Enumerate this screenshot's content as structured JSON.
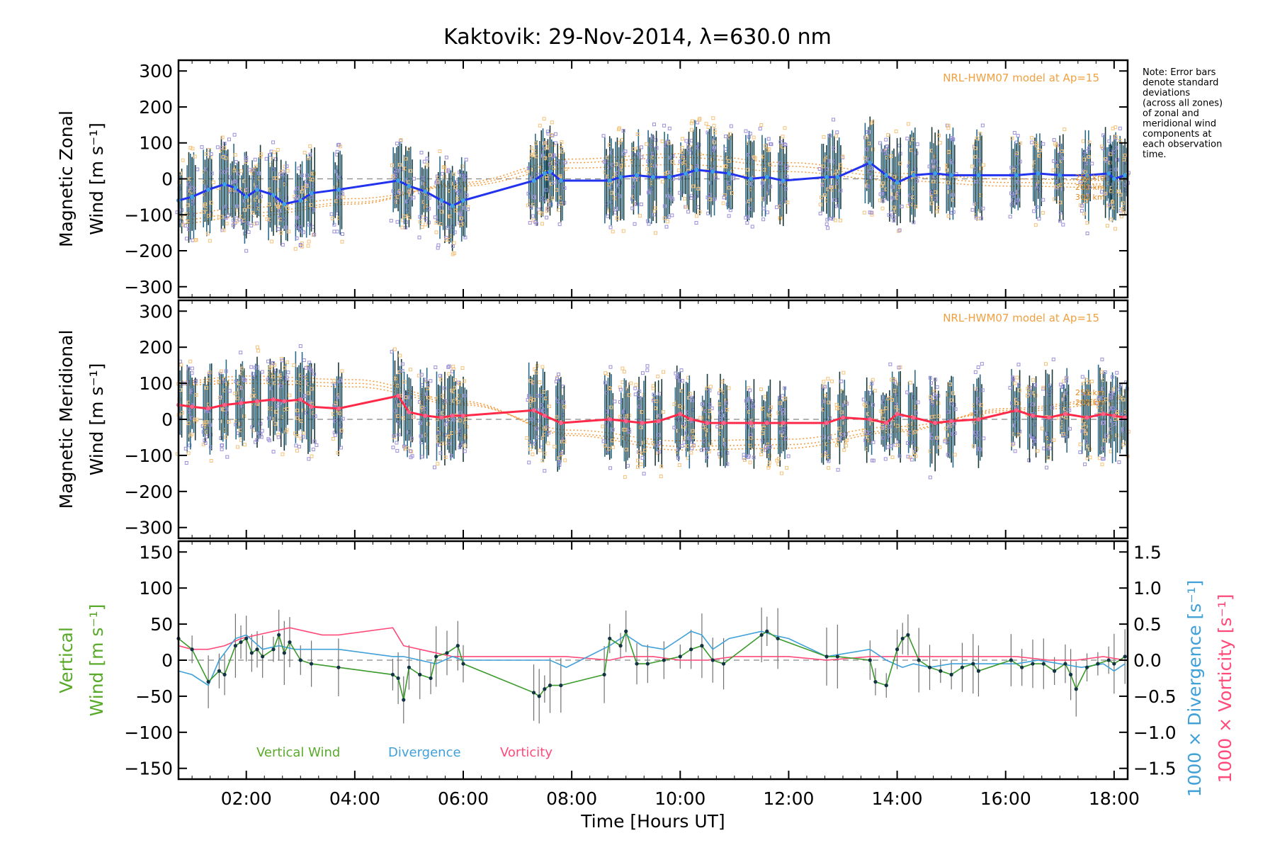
{
  "title": "Kaktovik: 29-Nov-2014, λ=630.0 nm",
  "note_lines": [
    "Note: Error bars",
    "denote standard",
    "deviations",
    "(across all zones)",
    "of zonal and",
    "meridional wind",
    "components at",
    "each observation",
    "time."
  ],
  "colors": {
    "zonal": "#2233ee",
    "zonal_light": "#3ea0e0",
    "meridional": "#ff2a4a",
    "meridional_light": "#ff6088",
    "model": "#f59a3c",
    "zone_violet": "#9a8fd8",
    "zone_orange": "#f5c27a",
    "errbar_dark": "#1a3a3a",
    "errbar_grey": "#707070",
    "vertical": "#3a9a2a",
    "vertical_label": "#5aaa2a",
    "divergence": "#40a0d8",
    "vorticity": "#ff4a7a"
  },
  "chart_data": [
    {
      "type": "line",
      "panel": "zonal",
      "ylabel_line1": "Magnetic Zonal",
      "ylabel_line2": "Wind [m s⁻¹]",
      "ylim": [
        -330,
        330
      ],
      "yticks": [
        300,
        200,
        100,
        0,
        -100,
        -200,
        -300
      ],
      "yticklabels": [
        "300",
        "200",
        "100",
        "0",
        "−100",
        "−200",
        "−300"
      ],
      "model_label": "NRL-HWM07 model at Ap=15",
      "model_alt_labels": [
        "250 km",
        "200 km",
        "300 km"
      ],
      "x": [
        0.75,
        1.0,
        1.3,
        1.6,
        1.8,
        2.0,
        2.2,
        2.5,
        2.7,
        3.0,
        3.2,
        3.7,
        4.8,
        5.0,
        5.3,
        5.6,
        5.8,
        6.0,
        7.3,
        7.5,
        7.6,
        7.8,
        8.7,
        8.9,
        9.2,
        9.5,
        9.8,
        10.1,
        10.3,
        10.6,
        10.9,
        11.3,
        11.6,
        11.9,
        12.7,
        12.9,
        13.5,
        13.8,
        14.0,
        14.3,
        14.7,
        15.0,
        15.5,
        16.2,
        16.6,
        17.0,
        17.5,
        17.9,
        18.0,
        18.2
      ],
      "y": [
        -60,
        -50,
        -30,
        -15,
        -25,
        -50,
        -30,
        -45,
        -70,
        -60,
        -40,
        -30,
        -5,
        -20,
        -35,
        -60,
        -75,
        -60,
        -5,
        15,
        20,
        -5,
        -5,
        5,
        10,
        5,
        5,
        15,
        25,
        20,
        15,
        0,
        5,
        -5,
        5,
        5,
        45,
        10,
        -10,
        10,
        15,
        10,
        10,
        10,
        15,
        10,
        10,
        15,
        0,
        10
      ],
      "model_curves": [
        {
          "name": "200 km",
          "x": [
            0.7,
            2,
            4,
            6,
            8,
            10,
            12,
            14,
            16,
            18.2
          ],
          "y": [
            -100,
            -80,
            -55,
            -20,
            30,
            40,
            20,
            -5,
            -20,
            -25
          ]
        },
        {
          "name": "250 km",
          "x": [
            0.7,
            2,
            4,
            6,
            8,
            10,
            12,
            14,
            16,
            18.2
          ],
          "y": [
            -115,
            -95,
            -65,
            -15,
            45,
            60,
            35,
            5,
            -10,
            -15
          ]
        },
        {
          "name": "300 km",
          "x": [
            0.7,
            2,
            4,
            6,
            8,
            10,
            12,
            14,
            16,
            18.2
          ],
          "y": [
            -125,
            -105,
            -70,
            -10,
            55,
            70,
            45,
            15,
            0,
            -5
          ]
        }
      ]
    },
    {
      "type": "line",
      "panel": "meridional",
      "ylabel_line1": "Magnetic Meridional",
      "ylabel_line2": "Wind [m s⁻¹]",
      "ylim": [
        -330,
        330
      ],
      "yticks": [
        300,
        200,
        100,
        0,
        -100,
        -200,
        -300
      ],
      "yticklabels": [
        "300",
        "200",
        "100",
        "0",
        "−100",
        "−200",
        "−300"
      ],
      "model_label": "NRL-HWM07 model at Ap=15",
      "model_alt_labels": [
        "250 km",
        "200 km"
      ],
      "x": [
        0.75,
        1.0,
        1.3,
        1.6,
        1.9,
        2.2,
        2.5,
        2.7,
        3.0,
        3.2,
        3.7,
        4.8,
        5.0,
        5.3,
        5.6,
        5.8,
        6.0,
        7.3,
        7.5,
        7.8,
        8.7,
        9.0,
        9.3,
        9.6,
        10.0,
        10.2,
        10.5,
        10.8,
        11.3,
        11.6,
        11.9,
        12.7,
        13.0,
        13.5,
        13.8,
        14.0,
        14.3,
        14.7,
        15.0,
        15.5,
        16.2,
        16.5,
        16.8,
        17.1,
        17.5,
        17.8,
        18.0,
        18.2
      ],
      "y": [
        40,
        35,
        30,
        40,
        45,
        50,
        55,
        50,
        55,
        35,
        30,
        65,
        20,
        10,
        5,
        10,
        10,
        25,
        10,
        -10,
        0,
        -5,
        -10,
        -5,
        15,
        0,
        -10,
        -10,
        -10,
        -10,
        -10,
        -10,
        5,
        0,
        -10,
        15,
        5,
        -10,
        -5,
        0,
        25,
        10,
        5,
        15,
        5,
        15,
        10,
        5
      ],
      "model_curves": [
        {
          "name": "200 km",
          "x": [
            0.7,
            2,
            4,
            6,
            8,
            10,
            12,
            14,
            16,
            18.2
          ],
          "y": [
            95,
            100,
            90,
            40,
            -30,
            -60,
            -55,
            -20,
            20,
            45
          ]
        },
        {
          "name": "250 km",
          "x": [
            0.7,
            2,
            4,
            6,
            8,
            10,
            12,
            14,
            16,
            18.2
          ],
          "y": [
            100,
            110,
            100,
            45,
            -40,
            -75,
            -70,
            -30,
            25,
            55
          ]
        },
        {
          "name": "300 km",
          "x": [
            0.7,
            2,
            4,
            6,
            8,
            10,
            12,
            14,
            16,
            18.2
          ],
          "y": [
            105,
            120,
            110,
            50,
            -45,
            -85,
            -80,
            -35,
            30,
            60
          ]
        }
      ]
    },
    {
      "type": "line",
      "panel": "vertical",
      "ylabel_left_line1": "Vertical",
      "ylabel_left_line2": "Wind [m s⁻¹]",
      "ylabel_right_div": "1000 × Divergence [s⁻¹]",
      "ylabel_right_vort": "1000 × Vorticity [s⁻¹]",
      "ylim": [
        -165,
        165
      ],
      "yticks": [
        150,
        100,
        50,
        0,
        -50,
        -100,
        -150
      ],
      "yticklabels": [
        "150",
        "100",
        "50",
        "0",
        "−50",
        "−100",
        "−150"
      ],
      "y2lim": [
        -1.65,
        1.65
      ],
      "y2ticks": [
        1.5,
        1.0,
        0.5,
        0.0,
        -0.5,
        -1.0,
        -1.5
      ],
      "y2ticklabels": [
        "1.5",
        "1.0",
        "0.5",
        "0.0",
        "−0.5",
        "−1.0",
        "−1.5"
      ],
      "legend": [
        "Vertical Wind",
        "Divergence",
        "Vorticity"
      ],
      "xlim": [
        0.75,
        18.25
      ],
      "xticks": [
        2,
        4,
        6,
        8,
        10,
        12,
        14,
        16,
        18
      ],
      "xticklabels": [
        "02:00",
        "04:00",
        "06:00",
        "08:00",
        "10:00",
        "12:00",
        "14:00",
        "16:00",
        "18:00"
      ],
      "xlabel": "Time [Hours UT]",
      "series": [
        {
          "name": "Vertical Wind",
          "x": [
            0.75,
            1.0,
            1.3,
            1.5,
            1.6,
            1.8,
            1.9,
            2.0,
            2.1,
            2.2,
            2.3,
            2.5,
            2.6,
            2.7,
            2.8,
            3.0,
            3.2,
            3.7,
            4.7,
            4.8,
            4.9,
            5.0,
            5.2,
            5.4,
            5.5,
            5.7,
            5.9,
            6.0,
            7.3,
            7.4,
            7.5,
            7.6,
            7.8,
            8.6,
            8.7,
            8.9,
            9.0,
            9.2,
            9.4,
            9.7,
            10.0,
            10.2,
            10.4,
            10.6,
            10.8,
            11.5,
            11.6,
            11.8,
            12.7,
            12.9,
            13.5,
            13.6,
            13.8,
            14.0,
            14.1,
            14.2,
            14.4,
            14.6,
            14.8,
            15.0,
            15.2,
            15.4,
            15.5,
            16.1,
            16.3,
            16.5,
            16.7,
            16.9,
            17.1,
            17.2,
            17.3,
            17.5,
            17.7,
            17.9,
            18.0,
            18.2
          ],
          "y": [
            30,
            15,
            -30,
            -15,
            -20,
            20,
            25,
            30,
            10,
            15,
            5,
            15,
            35,
            10,
            25,
            0,
            -5,
            -10,
            -20,
            -25,
            -55,
            -10,
            -20,
            -25,
            5,
            10,
            20,
            -5,
            -45,
            -50,
            -40,
            -35,
            -35,
            -20,
            30,
            20,
            40,
            -5,
            -5,
            0,
            5,
            15,
            20,
            0,
            -5,
            35,
            40,
            30,
            5,
            5,
            0,
            -30,
            -35,
            15,
            30,
            35,
            0,
            -10,
            -15,
            -20,
            -10,
            -5,
            -15,
            0,
            -10,
            -5,
            -5,
            -15,
            -5,
            -20,
            -40,
            -10,
            -5,
            0,
            -5,
            5
          ]
        },
        {
          "name": "Divergence",
          "x": [
            0.75,
            1.0,
            1.3,
            1.5,
            1.8,
            2.0,
            2.3,
            2.6,
            2.9,
            3.2,
            3.7,
            4.7,
            4.9,
            5.2,
            5.5,
            5.8,
            6.0,
            7.3,
            7.6,
            7.9,
            8.7,
            9.0,
            9.3,
            9.7,
            10.0,
            10.2,
            10.4,
            10.6,
            10.9,
            11.5,
            11.7,
            12.0,
            12.7,
            13.5,
            13.8,
            14.1,
            14.3,
            14.6,
            15.0,
            15.5,
            16.2,
            16.6,
            17.0,
            17.4,
            17.8,
            18.0,
            18.2
          ],
          "y": [
            -0.15,
            -0.2,
            -0.35,
            0.0,
            0.3,
            0.35,
            0.15,
            0.2,
            0.15,
            0.15,
            0.15,
            0.05,
            0.05,
            0.0,
            -0.05,
            0.05,
            0.0,
            0.0,
            0.0,
            -0.1,
            0.2,
            0.35,
            0.2,
            0.15,
            0.3,
            0.4,
            0.35,
            0.15,
            0.3,
            0.4,
            0.35,
            0.3,
            0.05,
            0.15,
            0.0,
            -0.1,
            -0.05,
            -0.1,
            -0.05,
            -0.05,
            -0.05,
            0.0,
            -0.05,
            -0.1,
            -0.05,
            -0.15,
            -0.05
          ]
        },
        {
          "name": "Vorticity",
          "x": [
            0.75,
            1.0,
            1.3,
            1.6,
            1.9,
            2.2,
            2.5,
            2.8,
            3.1,
            3.4,
            3.7,
            4.7,
            4.9,
            5.2,
            5.5,
            5.8,
            6.0,
            7.3,
            7.6,
            7.9,
            8.7,
            9.0,
            9.5,
            10.0,
            10.5,
            11.0,
            11.5,
            12.0,
            12.7,
            13.5,
            14.0,
            14.5,
            15.0,
            15.5,
            16.2,
            16.8,
            17.3,
            17.8,
            18.2
          ],
          "y": [
            0.2,
            0.15,
            0.15,
            0.2,
            0.3,
            0.35,
            0.4,
            0.45,
            0.4,
            0.35,
            0.35,
            0.45,
            0.2,
            0.15,
            0.1,
            0.05,
            0.05,
            0.05,
            0.05,
            0.05,
            0.0,
            0.05,
            0.05,
            0.0,
            0.0,
            0.05,
            0.05,
            0.05,
            0.0,
            0.05,
            0.05,
            0.05,
            0.05,
            0.05,
            0.05,
            0.0,
            0.0,
            0.05,
            0.0
          ]
        }
      ]
    }
  ]
}
